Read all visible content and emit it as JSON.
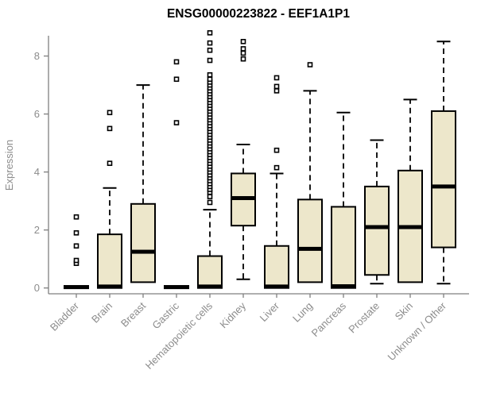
{
  "chart_data": {
    "type": "boxplot",
    "title": "ENSG00000223822 - EEF1A1P1",
    "xlabel": "",
    "ylabel": "Expression",
    "yticks": [
      0,
      2,
      4,
      6,
      8
    ],
    "ylim": [
      -0.2,
      8.7
    ],
    "grid": false,
    "legend": "none",
    "categories": [
      "Bladder",
      "Brain",
      "Breast",
      "Gastric",
      "Hematopoietic cells",
      "Kidney",
      "Liver",
      "Lung",
      "Pancreas",
      "Prostate",
      "Skin",
      "Unknown / Other"
    ],
    "series": [
      {
        "name": "Bladder",
        "whisker_low": 0,
        "q1": 0,
        "median": 0.03,
        "q3": 0.07,
        "whisker_high": 0.07,
        "outliers": [
          0.85,
          0.95,
          1.45,
          1.9,
          2.45
        ]
      },
      {
        "name": "Brain",
        "whisker_low": 0,
        "q1": 0,
        "median": 0.05,
        "q3": 1.85,
        "whisker_high": 3.45,
        "outliers": [
          4.3,
          5.5,
          6.05
        ]
      },
      {
        "name": "Breast",
        "whisker_low": 0.2,
        "q1": 0.2,
        "median": 1.25,
        "q3": 2.9,
        "whisker_high": 7.0,
        "outliers": []
      },
      {
        "name": "Gastric",
        "whisker_low": 0,
        "q1": 0,
        "median": 0.03,
        "q3": 0.07,
        "whisker_high": 0.07,
        "outliers": [
          5.7,
          7.2,
          7.8
        ]
      },
      {
        "name": "Hematopoietic cells",
        "whisker_low": 0,
        "q1": 0,
        "median": 0.05,
        "q3": 1.1,
        "whisker_high": 2.7,
        "outliers": [
          2.95,
          3.15,
          3.3,
          3.4,
          3.5,
          3.6,
          3.7,
          3.8,
          3.9,
          4.0,
          4.1,
          4.2,
          4.3,
          4.4,
          4.5,
          4.6,
          4.7,
          4.8,
          4.9,
          5.0,
          5.1,
          5.2,
          5.3,
          5.4,
          5.5,
          5.6,
          5.7,
          5.8,
          5.9,
          6.0,
          6.1,
          6.2,
          6.3,
          6.4,
          6.5,
          6.6,
          6.7,
          6.8,
          6.9,
          7.0,
          7.1,
          7.2,
          7.35,
          7.85,
          8.2,
          8.45,
          8.8
        ]
      },
      {
        "name": "Kidney",
        "whisker_low": 0.3,
        "q1": 2.15,
        "median": 3.1,
        "q3": 3.95,
        "whisker_high": 4.95,
        "outliers": [
          7.9,
          8.1,
          8.25,
          8.5
        ]
      },
      {
        "name": "Liver",
        "whisker_low": 0,
        "q1": 0,
        "median": 0.05,
        "q3": 1.45,
        "whisker_high": 3.95,
        "outliers": [
          4.15,
          4.75,
          6.8,
          6.95,
          7.25
        ]
      },
      {
        "name": "Lung",
        "whisker_low": 0.2,
        "q1": 0.2,
        "median": 1.35,
        "q3": 3.05,
        "whisker_high": 6.8,
        "outliers": [
          7.7
        ]
      },
      {
        "name": "Pancreas",
        "whisker_low": 0,
        "q1": 0,
        "median": 0.06,
        "q3": 2.8,
        "whisker_high": 6.05,
        "outliers": []
      },
      {
        "name": "Prostate",
        "whisker_low": 0.15,
        "q1": 0.45,
        "median": 2.1,
        "q3": 3.5,
        "whisker_high": 5.1,
        "outliers": []
      },
      {
        "name": "Skin",
        "whisker_low": 0.2,
        "q1": 0.2,
        "median": 2.1,
        "q3": 4.05,
        "whisker_high": 6.5,
        "outliers": []
      },
      {
        "name": "Unknown / Other",
        "whisker_low": 0.15,
        "q1": 1.4,
        "median": 3.5,
        "q3": 6.1,
        "whisker_high": 8.5,
        "outliers": []
      }
    ]
  },
  "colors": {
    "box_fill": "#ede7cb",
    "box_stroke": "#000000",
    "median": "#000000",
    "whisker": "#000000",
    "outlier_stroke": "#000000",
    "outlier_fill": "#ffffff",
    "axis": "#7f7f7f",
    "tick_label": "#8c8c8c",
    "title": "#000000",
    "background": "#ffffff"
  }
}
